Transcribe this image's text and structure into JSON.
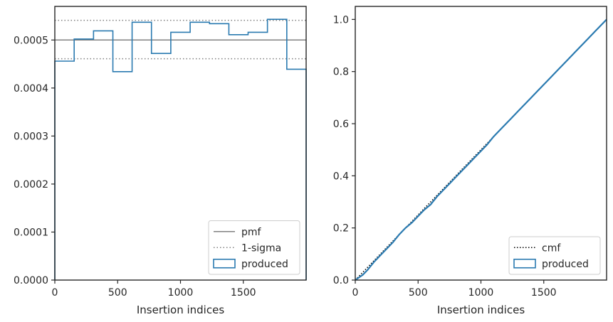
{
  "chart_data": [
    {
      "type": "step",
      "xlabel": "Insertion indices",
      "ylabel": "",
      "xlim": [
        0,
        2000
      ],
      "ylim": [
        0,
        0.00057
      ],
      "xticks": [
        0,
        500,
        1000,
        1500
      ],
      "xtick_labels": [
        "0",
        "500",
        "1000",
        "1500"
      ],
      "yticks": [
        0,
        0.0001,
        0.0002,
        0.0003,
        0.0004,
        0.0005
      ],
      "ytick_labels": [
        "0.0000",
        "0.0001",
        "0.0002",
        "0.0003",
        "0.0004",
        "0.0005"
      ],
      "grid": false,
      "legend_position": "lower-right",
      "pmf": {
        "name": "pmf",
        "value": 0.0005,
        "color": "#808080"
      },
      "sigma": {
        "name": "1-sigma",
        "values": [
          0.000461,
          0.000541
        ],
        "color": "#808080"
      },
      "series": [
        {
          "name": "produced",
          "color": "#2a7ab0",
          "bin_edges": [
            0,
            154,
            308,
            462,
            615,
            769,
            923,
            1077,
            1231,
            1385,
            1538,
            1692,
            1846,
            2000
          ],
          "values": [
            0.000456,
            0.000502,
            0.000519,
            0.000434,
            0.000537,
            0.000472,
            0.000516,
            0.000537,
            0.000534,
            0.000511,
            0.000516,
            0.000543,
            0.000439
          ]
        }
      ]
    },
    {
      "type": "line",
      "xlabel": "Insertion indices",
      "ylabel": "",
      "xlim": [
        0,
        2000
      ],
      "ylim": [
        0,
        1.05
      ],
      "xticks": [
        0,
        500,
        1000,
        1500
      ],
      "xtick_labels": [
        "0",
        "500",
        "1000",
        "1500"
      ],
      "yticks": [
        0,
        0.2,
        0.4,
        0.6,
        0.8,
        1.0
      ],
      "ytick_labels": [
        "0.0",
        "0.2",
        "0.4",
        "0.6",
        "0.8",
        "1.0"
      ],
      "grid": false,
      "legend_position": "lower-right",
      "cmf": {
        "name": "cmf",
        "x": [
          0,
          2000
        ],
        "y": [
          0,
          1.0
        ],
        "color": "#000000"
      },
      "series": [
        {
          "name": "produced",
          "color": "#2a7ab0",
          "x": [
            0,
            60,
            100,
            150,
            200,
            250,
            300,
            350,
            400,
            450,
            500,
            550,
            600,
            650,
            700,
            750,
            800,
            850,
            900,
            950,
            1000,
            1050,
            1100,
            1150,
            1200,
            1250,
            1300,
            1350,
            1400,
            1450,
            1500,
            1550,
            1600,
            1650,
            1700,
            1750,
            1800,
            1850,
            1900,
            1950,
            2000
          ],
          "y": [
            0,
            0.02,
            0.04,
            0.07,
            0.095,
            0.12,
            0.145,
            0.175,
            0.2,
            0.22,
            0.245,
            0.27,
            0.29,
            0.32,
            0.345,
            0.37,
            0.395,
            0.42,
            0.445,
            0.47,
            0.495,
            0.52,
            0.55,
            0.575,
            0.6,
            0.625,
            0.65,
            0.675,
            0.7,
            0.725,
            0.75,
            0.775,
            0.8,
            0.825,
            0.85,
            0.875,
            0.9,
            0.925,
            0.95,
            0.975,
            1.0
          ]
        }
      ]
    }
  ]
}
